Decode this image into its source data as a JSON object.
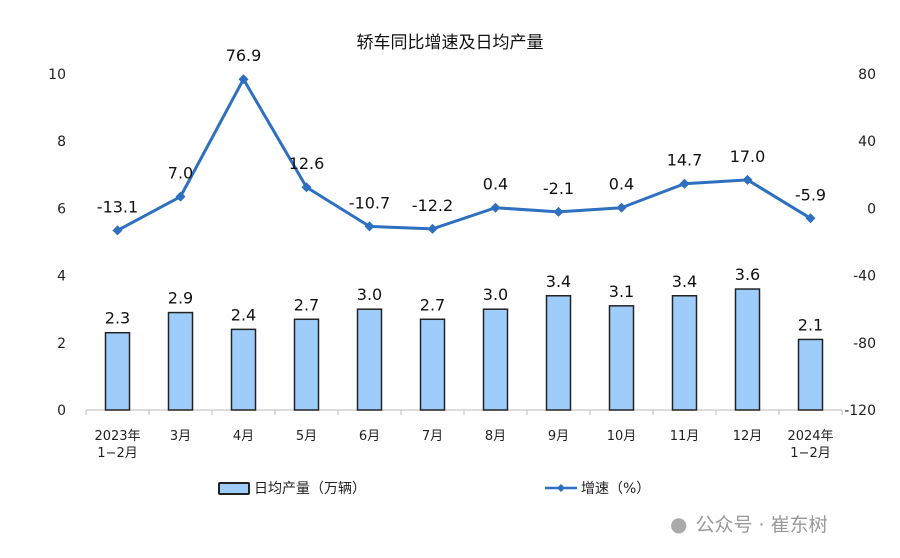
{
  "chart_data": {
    "type": "bar+line",
    "title": "轿车同比增速及日均产量",
    "categories": [
      [
        "2023年",
        "1−2月"
      ],
      [
        "3月"
      ],
      [
        "4月"
      ],
      [
        "5月"
      ],
      [
        "6月"
      ],
      [
        "7月"
      ],
      [
        "8月"
      ],
      [
        "9月"
      ],
      [
        "10月"
      ],
      [
        "11月"
      ],
      [
        "12月"
      ],
      [
        "2024年",
        "1−2月"
      ]
    ],
    "series": [
      {
        "name": "日均产量（万辆）",
        "type": "bar",
        "axis": "left",
        "color": "#9fcdfb",
        "values": [
          2.3,
          2.9,
          2.4,
          2.7,
          3.0,
          2.7,
          3.0,
          3.4,
          3.1,
          3.4,
          3.6,
          2.1
        ]
      },
      {
        "name": "增速（%）",
        "type": "line",
        "axis": "right",
        "color": "#2e6fc0",
        "values": [
          -13.1,
          7.0,
          76.9,
          12.6,
          -10.7,
          -12.2,
          0.4,
          -2.1,
          0.4,
          14.7,
          17.0,
          -5.9
        ]
      }
    ],
    "left_axis": {
      "ylim": [
        0,
        10
      ],
      "ticks": [
        "0",
        "2",
        "4",
        "6",
        "8",
        "10"
      ]
    },
    "right_axis": {
      "ylim": [
        -120,
        80
      ],
      "ticks": [
        "-120",
        "-80",
        "-40",
        "0",
        "40",
        "80"
      ]
    },
    "legend": "bottom",
    "grid": false
  },
  "watermark": "公众号 · 崔东树"
}
